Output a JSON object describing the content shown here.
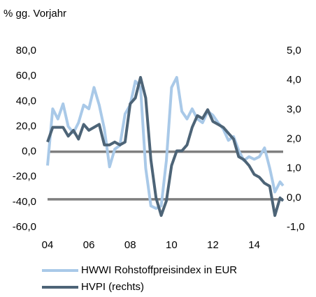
{
  "chart_data": {
    "type": "line",
    "title": "% gg. Vorjahr",
    "x": [
      2004,
      2004.25,
      2004.5,
      2004.75,
      2005,
      2005.25,
      2005.5,
      2005.75,
      2006,
      2006.25,
      2006.5,
      2006.75,
      2007,
      2007.25,
      2007.5,
      2007.75,
      2008,
      2008.25,
      2008.5,
      2008.75,
      2009,
      2009.25,
      2009.5,
      2009.75,
      2010,
      2010.25,
      2010.5,
      2010.75,
      2011,
      2011.25,
      2011.5,
      2011.75,
      2012,
      2012.25,
      2012.5,
      2012.75,
      2013,
      2013.25,
      2013.5,
      2013.75,
      2014,
      2014.25,
      2014.5,
      2014.75,
      2015,
      2015.25,
      2015.4
    ],
    "series": [
      {
        "name": "HWWI Rohstoffpreisindex in EUR",
        "color": "#a9c9e8",
        "axis": "y",
        "values": [
          -11,
          34,
          26,
          38,
          20,
          15,
          23,
          37,
          34,
          51,
          37,
          18,
          -12,
          2,
          5,
          30,
          37,
          56,
          51,
          -13,
          -43,
          -45,
          -43,
          -7,
          51,
          59,
          32,
          26,
          34,
          26,
          23,
          32,
          29,
          23,
          18,
          9,
          12,
          1,
          -7,
          -4,
          -6,
          -4,
          3,
          -13,
          -32,
          -24,
          -27
        ]
      },
      {
        "name": "HVPI (rechts)",
        "color": "#4d6477",
        "axis": "y2",
        "values": [
          1.9,
          2.4,
          2.4,
          2.4,
          2.1,
          2.3,
          2.0,
          2.5,
          2.3,
          2.4,
          2.5,
          1.8,
          1.8,
          1.9,
          1.8,
          1.9,
          3.2,
          3.4,
          4.1,
          3.4,
          1.3,
          0.0,
          -0.6,
          -0.1,
          1.1,
          1.6,
          1.6,
          1.8,
          2.4,
          2.8,
          2.7,
          3.0,
          2.6,
          2.5,
          2.4,
          2.2,
          2.0,
          1.4,
          1.3,
          1.1,
          0.8,
          0.7,
          0.5,
          0.4,
          -0.6,
          0.0,
          -0.1
        ]
      }
    ],
    "xlim": [
      2004,
      2015.4
    ],
    "xticks": [
      {
        "value": 2004,
        "label": "04"
      },
      {
        "value": 2006,
        "label": "06"
      },
      {
        "value": 2008,
        "label": "08"
      },
      {
        "value": 2010,
        "label": "10"
      },
      {
        "value": 2012,
        "label": "12"
      },
      {
        "value": 2014,
        "label": "14"
      }
    ],
    "ylim": [
      -60,
      80
    ],
    "yticks": [
      {
        "value": -60,
        "label": "-60,0"
      },
      {
        "value": -40,
        "label": "-40,0"
      },
      {
        "value": -20,
        "label": "-20,0"
      },
      {
        "value": 0,
        "label": "0,0"
      },
      {
        "value": 20,
        "label": "20,0"
      },
      {
        "value": 40,
        "label": "40,0"
      },
      {
        "value": 60,
        "label": "60,0"
      },
      {
        "value": 80,
        "label": "80,0"
      }
    ],
    "y2lim": [
      -1,
      5
    ],
    "y2ticks": [
      {
        "value": -1,
        "label": "-1,0"
      },
      {
        "value": 0,
        "label": "0,0"
      },
      {
        "value": 1,
        "label": "1,0"
      },
      {
        "value": 2,
        "label": "2,0"
      },
      {
        "value": 3,
        "label": "3,0"
      },
      {
        "value": 4,
        "label": "4,0"
      },
      {
        "value": 5,
        "label": "5,0"
      }
    ],
    "zero_lines": true,
    "zero_line_color": "#7f7f7f",
    "legend": "bottom"
  }
}
